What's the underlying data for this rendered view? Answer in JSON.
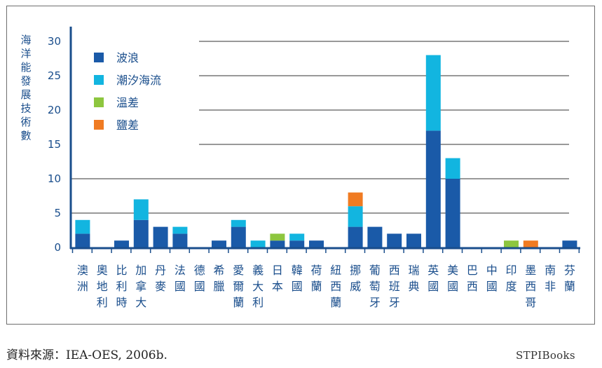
{
  "chart_data": {
    "type": "bar",
    "stacked": true,
    "ylabel": "海洋能發展技術數",
    "ylim": [
      0,
      30
    ],
    "yticks": [
      0,
      5,
      10,
      15,
      20,
      25,
      30
    ],
    "grid": "horizontal",
    "legend_position": "top-left",
    "categories": [
      "澳洲",
      "奧地利",
      "比利時",
      "加拿大",
      "丹麥",
      "法國",
      "德國",
      "希臘",
      "愛爾蘭",
      "義大利",
      "日本",
      "韓國",
      "荷蘭",
      "紐西蘭",
      "挪威",
      "葡萄牙",
      "西班牙",
      "瑞典",
      "英國",
      "美國",
      "巴西",
      "中國",
      "印度",
      "墨西哥",
      "南非",
      "芬蘭"
    ],
    "series": [
      {
        "name": "波浪",
        "color": "#1a5aa8",
        "values": [
          2,
          0,
          1,
          4,
          3,
          2,
          0,
          1,
          3,
          0,
          1,
          1,
          1,
          0,
          3,
          3,
          2,
          2,
          17,
          10,
          0,
          0,
          0,
          0,
          0,
          1
        ]
      },
      {
        "name": "潮汐海流",
        "color": "#12b5e0",
        "values": [
          2,
          0,
          0,
          3,
          0,
          1,
          0,
          0,
          1,
          1,
          0,
          1,
          0,
          0,
          3,
          0,
          0,
          0,
          11,
          3,
          0,
          0,
          0,
          0,
          0,
          0
        ]
      },
      {
        "name": "溫差",
        "color": "#8dc63f",
        "values": [
          0,
          0,
          0,
          0,
          0,
          0,
          0,
          0,
          0,
          0,
          1,
          0,
          0,
          0,
          0,
          0,
          0,
          0,
          0,
          0,
          0,
          0,
          1,
          0,
          0,
          0
        ]
      },
      {
        "name": "鹽差",
        "color": "#f07b22",
        "values": [
          0,
          0,
          0,
          0,
          0,
          0,
          0,
          0,
          0,
          0,
          0,
          0,
          0,
          0,
          2,
          0,
          0,
          0,
          0,
          0,
          0,
          0,
          0,
          1,
          0,
          0
        ]
      }
    ]
  },
  "footer": {
    "source": "資料來源：IEA-OES, 2006b.",
    "brand": "STPIBooks"
  }
}
